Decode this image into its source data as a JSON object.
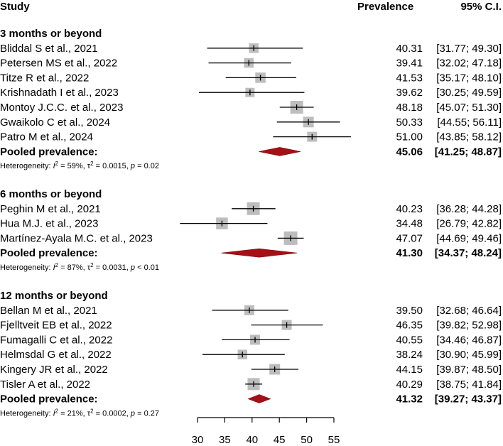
{
  "chart_data": {
    "type": "forest",
    "headers": {
      "study": "Study",
      "prevalence": "Prevalence",
      "ci": "95% C.I."
    },
    "x_axis": {
      "ticks": [
        30,
        35,
        40,
        45,
        50,
        55
      ],
      "range": [
        30,
        55
      ]
    },
    "colors": {
      "box": "#bdbdbd",
      "diamond": "#a50f15",
      "line": "#000000"
    },
    "groups": [
      {
        "title": "3 months or beyond",
        "studies": [
          {
            "label": "Bliddal S et al., 2021",
            "est": 40.31,
            "lo": 31.77,
            "hi": 49.3,
            "est_text": "40.31",
            "ci_text": "[31.77; 49.30]",
            "weight": 0.55
          },
          {
            "label": "Petersen MS et al., 2022",
            "est": 39.41,
            "lo": 32.02,
            "hi": 47.18,
            "est_text": "39.41",
            "ci_text": "[32.02; 47.18]",
            "weight": 0.55
          },
          {
            "label": "Titze R et al., 2022",
            "est": 41.53,
            "lo": 35.17,
            "hi": 48.1,
            "est_text": "41.53",
            "ci_text": "[35.17; 48.10]",
            "weight": 0.65
          },
          {
            "label": "Krishnadath I et al., 2023",
            "est": 39.62,
            "lo": 30.25,
            "hi": 49.59,
            "est_text": "39.62",
            "ci_text": "[30.25; 49.59]",
            "weight": 0.5
          },
          {
            "label": "Montoy J.C.C. et al., 2023",
            "est": 48.18,
            "lo": 45.07,
            "hi": 51.3,
            "est_text": "48.18",
            "ci_text": "[45.07; 51.30]",
            "weight": 1.0
          },
          {
            "label": "Gwaikolo C et al., 2024",
            "est": 50.33,
            "lo": 44.55,
            "hi": 56.11,
            "est_text": "50.33",
            "ci_text": "[44.55; 56.11]",
            "weight": 0.7
          },
          {
            "label": "Patro M et al., 2024",
            "est": 51.0,
            "lo": 43.85,
            "hi": 58.12,
            "est_text": "51.00",
            "ci_text": "[43.85; 58.12]",
            "weight": 0.6
          }
        ],
        "pooled": {
          "label": "Pooled prevalence:",
          "est": 45.06,
          "lo": 41.25,
          "hi": 48.87,
          "est_text": "45.06",
          "ci_text": "[41.25; 48.87]"
        },
        "het": {
          "prefix": "Heterogeneity: ",
          "i2_sym": "I",
          "i2_sup": "2",
          "i2_val": " = 59%, ",
          "tau_sym": "τ",
          "tau_sup": "2",
          "tau_val": " = 0.0015, ",
          "p_sym": "p",
          "p_val": " = 0.02"
        }
      },
      {
        "title": "6 months or beyond",
        "studies": [
          {
            "label": "Peghin M et al., 2021",
            "est": 40.23,
            "lo": 36.28,
            "hi": 44.28,
            "est_text": "40.23",
            "ci_text": "[36.28; 44.28]",
            "weight": 1.0
          },
          {
            "label": "Hua M.J. et al., 2023",
            "est": 34.48,
            "lo": 26.79,
            "hi": 42.82,
            "est_text": "34.48",
            "ci_text": "[26.79; 42.82]",
            "weight": 0.85
          },
          {
            "label": "Martínez-Ayala M.C. et al., 2023",
            "est": 47.07,
            "lo": 44.69,
            "hi": 49.46,
            "est_text": "47.07",
            "ci_text": "[44.69; 49.46]",
            "weight": 1.1
          }
        ],
        "pooled": {
          "label": "Pooled prevalence:",
          "est": 41.3,
          "lo": 34.37,
          "hi": 48.24,
          "est_text": "41.30",
          "ci_text": "[34.37; 48.24]"
        },
        "het": {
          "prefix": "Heterogeneity: ",
          "i2_sym": "I",
          "i2_sup": "2",
          "i2_val": " = 87%, ",
          "tau_sym": "τ",
          "tau_sup": "2",
          "tau_val": " = 0.0031, ",
          "p_sym": "p",
          "p_val": " < 0.01"
        }
      },
      {
        "title": "12 months or beyond",
        "studies": [
          {
            "label": "Bellan M et al., 2021",
            "est": 39.5,
            "lo": 32.68,
            "hi": 46.64,
            "est_text": "39.50",
            "ci_text": "[32.68; 46.64]",
            "weight": 0.6
          },
          {
            "label": "Fjelltveit EB et al., 2022",
            "est": 46.35,
            "lo": 39.82,
            "hi": 52.98,
            "est_text": "46.35",
            "ci_text": "[39.82; 52.98]",
            "weight": 0.6
          },
          {
            "label": "Fumagalli C et al., 2022",
            "est": 40.55,
            "lo": 34.46,
            "hi": 46.87,
            "est_text": "40.55",
            "ci_text": "[34.46; 46.87]",
            "weight": 0.6
          },
          {
            "label": "Helmsdal G et al., 2022",
            "est": 38.24,
            "lo": 30.9,
            "hi": 45.99,
            "est_text": "38.24",
            "ci_text": "[30.90; 45.99]",
            "weight": 0.55
          },
          {
            "label": "Kingery JR et al., 2022",
            "est": 44.15,
            "lo": 39.87,
            "hi": 48.5,
            "est_text": "44.15",
            "ci_text": "[39.87; 48.50]",
            "weight": 0.7
          },
          {
            "label": "Tisler A et al., 2022",
            "est": 40.29,
            "lo": 38.75,
            "hi": 41.84,
            "est_text": "40.29",
            "ci_text": "[38.75; 41.84]",
            "weight": 0.9
          }
        ],
        "pooled": {
          "label": "Pooled prevalence:",
          "est": 41.32,
          "lo": 39.27,
          "hi": 43.37,
          "est_text": "41.32",
          "ci_text": "[39.27; 43.37]"
        },
        "het": {
          "prefix": "Heterogeneity: ",
          "i2_sym": "I",
          "i2_sup": "2",
          "i2_val": " = 21%, ",
          "tau_sym": "τ",
          "tau_sup": "2",
          "tau_val": " = 0.0002, ",
          "p_sym": "p",
          "p_val": " = 0.27"
        }
      }
    ]
  }
}
